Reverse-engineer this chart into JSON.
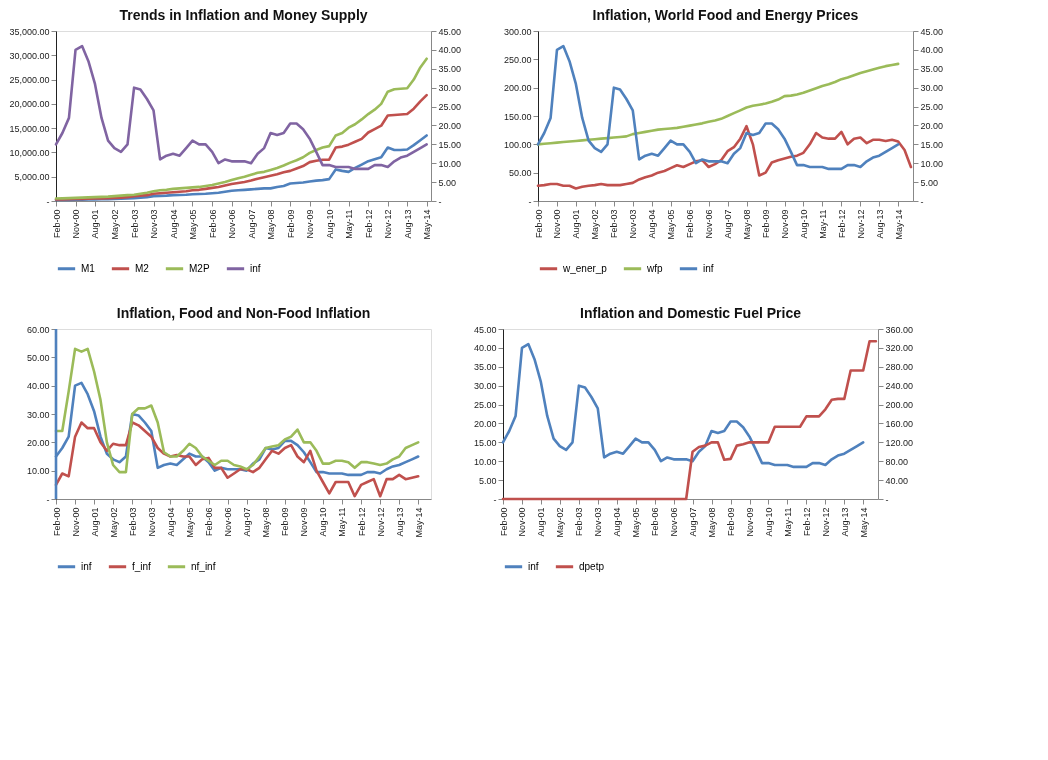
{
  "chart_data": [
    {
      "type": "line",
      "title": "Trends in Inflation and  Money Supply",
      "legend": "bottom",
      "grid": false,
      "x": [
        "2000-02",
        "2000-05",
        "2000-08",
        "2000-11",
        "2001-02",
        "2001-05",
        "2001-08",
        "2001-11",
        "2002-02",
        "2002-05",
        "2002-08",
        "2002-11",
        "2003-02",
        "2003-05",
        "2003-08",
        "2003-11",
        "2004-02",
        "2004-05",
        "2004-08",
        "2004-11",
        "2005-02",
        "2005-05",
        "2005-08",
        "2005-11",
        "2006-02",
        "2006-05",
        "2006-08",
        "2006-11",
        "2007-02",
        "2007-05",
        "2007-08",
        "2007-11",
        "2008-02",
        "2008-05",
        "2008-08",
        "2008-11",
        "2009-02",
        "2009-05",
        "2009-08",
        "2009-11",
        "2010-02",
        "2010-05",
        "2010-08",
        "2010-11",
        "2011-02",
        "2011-05",
        "2011-08",
        "2011-11",
        "2012-02",
        "2012-05",
        "2012-08",
        "2012-11",
        "2013-02",
        "2013-05",
        "2013-08",
        "2013-11",
        "2014-02",
        "2014-05"
      ],
      "xlim": [
        "2000-02",
        "2014-07"
      ],
      "xticks": [
        {
          "value": "2000-02",
          "label": "Feb-00"
        },
        {
          "value": "2000-11",
          "label": "Nov-00"
        },
        {
          "value": "2001-08",
          "label": "Aug-01"
        },
        {
          "value": "2002-05",
          "label": "May-02"
        },
        {
          "value": "2003-02",
          "label": "Feb-03"
        },
        {
          "value": "2003-11",
          "label": "Nov-03"
        },
        {
          "value": "2004-08",
          "label": "Aug-04"
        },
        {
          "value": "2005-05",
          "label": "May-05"
        },
        {
          "value": "2006-02",
          "label": "Feb-06"
        },
        {
          "value": "2006-11",
          "label": "Nov-06"
        },
        {
          "value": "2007-08",
          "label": "Aug-07"
        },
        {
          "value": "2008-05",
          "label": "May-08"
        },
        {
          "value": "2009-02",
          "label": "Feb-09"
        },
        {
          "value": "2009-11",
          "label": "Nov-09"
        },
        {
          "value": "2010-08",
          "label": "Aug-10"
        },
        {
          "value": "2011-05",
          "label": "May-11"
        },
        {
          "value": "2012-02",
          "label": "Feb-12"
        },
        {
          "value": "2012-11",
          "label": "Nov-12"
        },
        {
          "value": "2013-08",
          "label": "Aug-13"
        },
        {
          "value": "2014-05",
          "label": "May-14"
        }
      ],
      "ylim": [
        0,
        35000
      ],
      "yticks": [
        {
          "value": 0,
          "label": "-"
        },
        {
          "value": 5000,
          "label": "5,000.00"
        },
        {
          "value": 10000,
          "label": "10,000.00"
        },
        {
          "value": 15000,
          "label": "15,000.00"
        },
        {
          "value": 20000,
          "label": "20,000.00"
        },
        {
          "value": 25000,
          "label": "25,000.00"
        },
        {
          "value": 30000,
          "label": "30,000.00"
        },
        {
          "value": 35000,
          "label": "35,000.00"
        }
      ],
      "y2lim": [
        0,
        45
      ],
      "y2ticks": [
        {
          "value": 0,
          "label": "-"
        },
        {
          "value": 5,
          "label": "5.00"
        },
        {
          "value": 10,
          "label": "10.00"
        },
        {
          "value": 15,
          "label": "15.00"
        },
        {
          "value": 20,
          "label": "20.00"
        },
        {
          "value": 25,
          "label": "25.00"
        },
        {
          "value": 30,
          "label": "30.00"
        },
        {
          "value": 35,
          "label": "35.00"
        },
        {
          "value": 40,
          "label": "40.00"
        },
        {
          "value": 45,
          "label": "45.00"
        }
      ],
      "series": [
        {
          "name": "M1",
          "color": "#4f81bd",
          "values": [
            200,
            220,
            240,
            260,
            280,
            300,
            320,
            350,
            380,
            420,
            460,
            520,
            600,
            700,
            800,
            1000,
            1050,
            1100,
            1200,
            1250,
            1300,
            1400,
            1450,
            1500,
            1600,
            1700,
            1900,
            2100,
            2200,
            2300,
            2400,
            2500,
            2600,
            2600,
            2900,
            3100,
            3600,
            3700,
            3800,
            4000,
            4200,
            4300,
            4500,
            6500,
            6200,
            6000,
            6800,
            7500,
            8200,
            8600,
            9000,
            11000,
            10500,
            10500,
            10600,
            11500,
            12500,
            13500
          ]
        },
        {
          "name": "M2",
          "color": "#c0504d",
          "values": [
            300,
            330,
            360,
            400,
            430,
            460,
            500,
            550,
            600,
            650,
            700,
            800,
            1000,
            1100,
            1200,
            1500,
            1600,
            1700,
            1800,
            1900,
            2000,
            2200,
            2300,
            2500,
            2700,
            2900,
            3200,
            3500,
            3700,
            3900,
            4200,
            4600,
            4900,
            5200,
            5500,
            5900,
            6200,
            6700,
            7200,
            8000,
            8300,
            8500,
            8500,
            11000,
            11200,
            11600,
            12200,
            12800,
            14100,
            14800,
            15500,
            17600,
            17700,
            17800,
            17900,
            19000,
            20500,
            21800
          ]
        },
        {
          "name": "M2P",
          "color": "#9bbb59",
          "values": [
            500,
            550,
            600,
            650,
            700,
            750,
            800,
            850,
            900,
            1000,
            1100,
            1200,
            1300,
            1500,
            1700,
            2000,
            2200,
            2300,
            2500,
            2600,
            2700,
            2800,
            2900,
            3100,
            3300,
            3600,
            3900,
            4300,
            4700,
            5000,
            5400,
            5800,
            6000,
            6400,
            6800,
            7300,
            7900,
            8400,
            9000,
            9900,
            10500,
            11000,
            11300,
            13500,
            14000,
            15100,
            15800,
            16800,
            17900,
            18800,
            20000,
            22500,
            23000,
            23100,
            23200,
            25000,
            27500,
            29300
          ]
        },
        {
          "name": "inf",
          "color": "#8064a2",
          "axis": "y2",
          "values": [
            15,
            18,
            22,
            40,
            41,
            37,
            31,
            22,
            16,
            14,
            13,
            15,
            30,
            29.5,
            27,
            24,
            11,
            12,
            12.5,
            12,
            14,
            16,
            15,
            15,
            13,
            10,
            11,
            10.5,
            10.5,
            10.5,
            10,
            12.5,
            14,
            18,
            17.5,
            18,
            20.5,
            20.5,
            19,
            16.5,
            13,
            9.5,
            9.5,
            9,
            9,
            9,
            8.5,
            8.5,
            8.5,
            9.5,
            9.5,
            9,
            10.5,
            11.5,
            12,
            13,
            14,
            15
          ]
        }
      ]
    },
    {
      "type": "line",
      "title": "Inflation, World Food and Energy Prices",
      "legend": "bottom",
      "grid": false,
      "x": [
        "2000-02",
        "2000-05",
        "2000-08",
        "2000-11",
        "2001-02",
        "2001-05",
        "2001-08",
        "2001-11",
        "2002-02",
        "2002-05",
        "2002-08",
        "2002-11",
        "2003-02",
        "2003-05",
        "2003-08",
        "2003-11",
        "2004-02",
        "2004-05",
        "2004-08",
        "2004-11",
        "2005-02",
        "2005-05",
        "2005-08",
        "2005-11",
        "2006-02",
        "2006-05",
        "2006-08",
        "2006-11",
        "2007-02",
        "2007-05",
        "2007-08",
        "2007-11",
        "2008-02",
        "2008-05",
        "2008-08",
        "2008-11",
        "2009-02",
        "2009-05",
        "2009-08",
        "2009-11",
        "2010-02",
        "2010-05",
        "2010-08",
        "2010-11",
        "2011-02",
        "2011-05",
        "2011-08",
        "2011-11",
        "2012-02",
        "2012-05",
        "2012-08",
        "2012-11",
        "2013-02",
        "2013-05",
        "2013-08",
        "2013-11",
        "2014-02",
        "2014-05",
        "2014-08",
        "2014-11"
      ],
      "xlim": [
        "2000-02",
        "2014-12"
      ],
      "xticks": [
        {
          "value": "2000-02",
          "label": "Feb-00"
        },
        {
          "value": "2000-11",
          "label": "Nov-00"
        },
        {
          "value": "2001-08",
          "label": "Aug-01"
        },
        {
          "value": "2002-05",
          "label": "May-02"
        },
        {
          "value": "2003-02",
          "label": "Feb-03"
        },
        {
          "value": "2003-11",
          "label": "Nov-03"
        },
        {
          "value": "2004-08",
          "label": "Aug-04"
        },
        {
          "value": "2005-05",
          "label": "May-05"
        },
        {
          "value": "2006-02",
          "label": "Feb-06"
        },
        {
          "value": "2006-11",
          "label": "Nov-06"
        },
        {
          "value": "2007-08",
          "label": "Aug-07"
        },
        {
          "value": "2008-05",
          "label": "May-08"
        },
        {
          "value": "2009-02",
          "label": "Feb-09"
        },
        {
          "value": "2009-11",
          "label": "Nov-09"
        },
        {
          "value": "2010-08",
          "label": "Aug-10"
        },
        {
          "value": "2011-05",
          "label": "May-11"
        },
        {
          "value": "2012-02",
          "label": "Feb-12"
        },
        {
          "value": "2012-11",
          "label": "Nov-12"
        },
        {
          "value": "2013-08",
          "label": "Aug-13"
        },
        {
          "value": "2014-05",
          "label": "May-14"
        }
      ],
      "ylim": [
        0,
        300
      ],
      "yticks": [
        {
          "value": 0,
          "label": "-"
        },
        {
          "value": 50,
          "label": "50.00"
        },
        {
          "value": 100,
          "label": "100.00"
        },
        {
          "value": 150,
          "label": "150.00"
        },
        {
          "value": 200,
          "label": "200.00"
        },
        {
          "value": 250,
          "label": "250.00"
        },
        {
          "value": 300,
          "label": "300.00"
        }
      ],
      "y2lim": [
        0,
        45
      ],
      "y2ticks": [
        {
          "value": 0,
          "label": "-"
        },
        {
          "value": 5,
          "label": "5.00"
        },
        {
          "value": 10,
          "label": "10.00"
        },
        {
          "value": 15,
          "label": "15.00"
        },
        {
          "value": 20,
          "label": "20.00"
        },
        {
          "value": 25,
          "label": "25.00"
        },
        {
          "value": 30,
          "label": "30.00"
        },
        {
          "value": 35,
          "label": "35.00"
        },
        {
          "value": 40,
          "label": "40.00"
        },
        {
          "value": 45,
          "label": "45.00"
        }
      ],
      "series": [
        {
          "name": "w_ener_p",
          "color": "#c0504d",
          "values": [
            27,
            28,
            30,
            30,
            27,
            27,
            22,
            25,
            27,
            28,
            30,
            28,
            28,
            28,
            30,
            32,
            38,
            42,
            45,
            50,
            53,
            58,
            63,
            60,
            65,
            70,
            72,
            60,
            65,
            72,
            88,
            95,
            110,
            132,
            100,
            45,
            50,
            68,
            72,
            75,
            78,
            80,
            85,
            100,
            120,
            112,
            110,
            110,
            122,
            100,
            110,
            112,
            102,
            108,
            108,
            106,
            108,
            105,
            90,
            60
          ]
        },
        {
          "name": "wfp",
          "color": "#9bbb59",
          "values": [
            100,
            101,
            102,
            103,
            104,
            105,
            106,
            107,
            108,
            109,
            110,
            111,
            112,
            113,
            114,
            118,
            120,
            122,
            124,
            126,
            127,
            128,
            129,
            131,
            133,
            135,
            137,
            140,
            142,
            145,
            150,
            155,
            160,
            165,
            168,
            170,
            172,
            175,
            179,
            185,
            186,
            188,
            191,
            195,
            199,
            203,
            206,
            210,
            215,
            218,
            222,
            226,
            229,
            232,
            235,
            238,
            240,
            242,
            null,
            null
          ]
        },
        {
          "name": "inf",
          "color": "#4f81bd",
          "axis": "y2",
          "values": [
            15,
            18,
            22,
            40,
            41,
            37,
            31,
            22,
            16,
            14,
            13,
            15,
            30,
            29.5,
            27,
            24,
            11,
            12,
            12.5,
            12,
            14,
            16,
            15,
            15,
            13,
            10,
            11,
            10.5,
            10.5,
            10.5,
            10,
            12.5,
            14,
            18,
            17.5,
            18,
            20.5,
            20.5,
            19,
            16.5,
            13,
            9.5,
            9.5,
            9,
            9,
            9,
            8.5,
            8.5,
            8.5,
            9.5,
            9.5,
            9,
            10.5,
            11.5,
            12,
            13,
            14,
            15,
            null,
            null
          ]
        }
      ]
    },
    {
      "type": "line",
      "title": "Inflation, Food and Non-Food Inflation",
      "legend": "bottom",
      "grid": false,
      "x": [
        "2000-02",
        "2000-05",
        "2000-08",
        "2000-11",
        "2001-02",
        "2001-05",
        "2001-08",
        "2001-11",
        "2002-02",
        "2002-05",
        "2002-08",
        "2002-11",
        "2003-02",
        "2003-05",
        "2003-08",
        "2003-11",
        "2004-02",
        "2004-05",
        "2004-08",
        "2004-11",
        "2005-02",
        "2005-05",
        "2005-08",
        "2005-11",
        "2006-02",
        "2006-05",
        "2006-08",
        "2006-11",
        "2007-02",
        "2007-05",
        "2007-08",
        "2007-11",
        "2008-02",
        "2008-05",
        "2008-08",
        "2008-11",
        "2009-02",
        "2009-05",
        "2009-08",
        "2009-11",
        "2010-02",
        "2010-05",
        "2010-08",
        "2010-11",
        "2011-02",
        "2011-05",
        "2011-08",
        "2011-11",
        "2012-02",
        "2012-05",
        "2012-08",
        "2012-11",
        "2013-02",
        "2013-05",
        "2013-08",
        "2013-11",
        "2014-02",
        "2014-05"
      ],
      "xlim": [
        "2000-02",
        "2014-11"
      ],
      "xticks": [
        {
          "value": "2000-02",
          "label": "Feb-00"
        },
        {
          "value": "2000-11",
          "label": "Nov-00"
        },
        {
          "value": "2001-08",
          "label": "Aug-01"
        },
        {
          "value": "2002-05",
          "label": "May-02"
        },
        {
          "value": "2003-02",
          "label": "Feb-03"
        },
        {
          "value": "2003-11",
          "label": "Nov-03"
        },
        {
          "value": "2004-08",
          "label": "Aug-04"
        },
        {
          "value": "2005-05",
          "label": "May-05"
        },
        {
          "value": "2006-02",
          "label": "Feb-06"
        },
        {
          "value": "2006-11",
          "label": "Nov-06"
        },
        {
          "value": "2007-08",
          "label": "Aug-07"
        },
        {
          "value": "2008-05",
          "label": "May-08"
        },
        {
          "value": "2009-02",
          "label": "Feb-09"
        },
        {
          "value": "2009-11",
          "label": "Nov-09"
        },
        {
          "value": "2010-08",
          "label": "Aug-10"
        },
        {
          "value": "2011-05",
          "label": "May-11"
        },
        {
          "value": "2012-02",
          "label": "Feb-12"
        },
        {
          "value": "2012-11",
          "label": "Nov-12"
        },
        {
          "value": "2013-08",
          "label": "Aug-13"
        },
        {
          "value": "2014-05",
          "label": "May-14"
        }
      ],
      "ylim": [
        0,
        60
      ],
      "yticks": [
        {
          "value": 0,
          "label": "-"
        },
        {
          "value": 10,
          "label": "10.00"
        },
        {
          "value": 20,
          "label": "20.00"
        },
        {
          "value": 30,
          "label": "30.00"
        },
        {
          "value": 40,
          "label": "40.00"
        },
        {
          "value": 50,
          "label": "50.00"
        },
        {
          "value": 60,
          "label": "60.00"
        }
      ],
      "ref_lines": [
        {
          "axis": "x",
          "value": "2000-02",
          "color": "#4f81bd"
        }
      ],
      "series": [
        {
          "name": "inf",
          "color": "#4f81bd",
          "values": [
            15,
            18,
            22,
            40,
            41,
            37,
            31,
            22,
            16,
            14,
            13,
            15,
            30,
            29.5,
            27,
            24,
            11,
            12,
            12.5,
            12,
            14,
            16,
            15,
            15,
            13,
            10,
            11,
            10.5,
            10.5,
            10.5,
            10,
            12.5,
            14,
            18,
            17.5,
            18,
            20.5,
            20.5,
            19,
            16.5,
            13,
            9.5,
            9.5,
            9,
            9,
            9,
            8.5,
            8.5,
            8.5,
            9.5,
            9.5,
            9,
            10.5,
            11.5,
            12,
            13,
            14,
            15
          ]
        },
        {
          "name": "f_inf",
          "color": "#c0504d",
          "values": [
            5,
            9,
            8,
            22,
            27,
            25,
            25,
            20,
            17,
            19.5,
            19,
            19,
            27,
            26,
            24,
            22,
            18,
            16,
            15,
            15.5,
            15,
            15,
            12,
            14,
            14.5,
            11,
            11,
            7.5,
            9,
            10.5,
            10.5,
            9.5,
            11,
            14,
            17,
            16,
            18,
            19,
            15,
            13,
            17,
            10,
            6,
            2,
            6,
            6,
            6,
            1,
            5,
            6,
            7,
            1,
            7,
            7,
            8.5,
            7,
            7.5,
            8
          ]
        },
        {
          "name": "nf_inf",
          "color": "#9bbb59",
          "values": [
            24,
            24,
            38,
            53,
            52,
            53,
            45,
            35,
            20,
            12,
            9.5,
            9.5,
            30,
            32,
            32,
            33,
            27,
            16.5,
            15,
            15,
            17,
            19.5,
            18,
            15,
            13.5,
            12,
            13.5,
            13.5,
            12,
            11.5,
            10.5,
            12,
            15,
            18,
            18.5,
            19,
            21,
            22,
            24.5,
            20,
            20,
            17,
            12.5,
            12.5,
            13.5,
            13.5,
            13,
            11,
            13,
            13,
            12.5,
            12,
            12.5,
            14,
            15,
            18,
            19,
            20
          ]
        }
      ]
    },
    {
      "type": "line",
      "title": "Inflation and Domestic Fuel Price",
      "legend": "bottom",
      "grid": false,
      "x": [
        "2000-02",
        "2000-05",
        "2000-08",
        "2000-11",
        "2001-02",
        "2001-05",
        "2001-08",
        "2001-11",
        "2002-02",
        "2002-05",
        "2002-08",
        "2002-11",
        "2003-02",
        "2003-05",
        "2003-08",
        "2003-11",
        "2004-02",
        "2004-05",
        "2004-08",
        "2004-11",
        "2005-02",
        "2005-05",
        "2005-08",
        "2005-11",
        "2006-02",
        "2006-05",
        "2006-08",
        "2006-11",
        "2007-02",
        "2007-05",
        "2007-08",
        "2007-11",
        "2008-02",
        "2008-05",
        "2008-08",
        "2008-11",
        "2009-02",
        "2009-05",
        "2009-08",
        "2009-11",
        "2010-02",
        "2010-05",
        "2010-08",
        "2010-11",
        "2011-02",
        "2011-05",
        "2011-08",
        "2011-11",
        "2012-02",
        "2012-05",
        "2012-08",
        "2012-11",
        "2013-02",
        "2013-05",
        "2013-08",
        "2013-11",
        "2014-02",
        "2014-05",
        "2014-08",
        "2014-11"
      ],
      "xlim": [
        "2000-02",
        "2014-12"
      ],
      "xticks": [
        {
          "value": "2000-02",
          "label": "Feb-00"
        },
        {
          "value": "2000-11",
          "label": "Nov-00"
        },
        {
          "value": "2001-08",
          "label": "Aug-01"
        },
        {
          "value": "2002-05",
          "label": "May-02"
        },
        {
          "value": "2003-02",
          "label": "Feb-03"
        },
        {
          "value": "2003-11",
          "label": "Nov-03"
        },
        {
          "value": "2004-08",
          "label": "Aug-04"
        },
        {
          "value": "2005-05",
          "label": "May-05"
        },
        {
          "value": "2006-02",
          "label": "Feb-06"
        },
        {
          "value": "2006-11",
          "label": "Nov-06"
        },
        {
          "value": "2007-08",
          "label": "Aug-07"
        },
        {
          "value": "2008-05",
          "label": "May-08"
        },
        {
          "value": "2009-02",
          "label": "Feb-09"
        },
        {
          "value": "2009-11",
          "label": "Nov-09"
        },
        {
          "value": "2010-08",
          "label": "Aug-10"
        },
        {
          "value": "2011-05",
          "label": "May-11"
        },
        {
          "value": "2012-02",
          "label": "Feb-12"
        },
        {
          "value": "2012-11",
          "label": "Nov-12"
        },
        {
          "value": "2013-08",
          "label": "Aug-13"
        },
        {
          "value": "2014-05",
          "label": "May-14"
        }
      ],
      "ylim": [
        0,
        45
      ],
      "yticks": [
        {
          "value": 0,
          "label": "-"
        },
        {
          "value": 5,
          "label": "5.00"
        },
        {
          "value": 10,
          "label": "10.00"
        },
        {
          "value": 15,
          "label": "15.00"
        },
        {
          "value": 20,
          "label": "20.00"
        },
        {
          "value": 25,
          "label": "25.00"
        },
        {
          "value": 30,
          "label": "30.00"
        },
        {
          "value": 35,
          "label": "35.00"
        },
        {
          "value": 40,
          "label": "40.00"
        },
        {
          "value": 45,
          "label": "45.00"
        }
      ],
      "y2lim": [
        0,
        360
      ],
      "y2ticks": [
        {
          "value": 0,
          "label": "-"
        },
        {
          "value": 40,
          "label": "40.00"
        },
        {
          "value": 80,
          "label": "80.00"
        },
        {
          "value": 120,
          "label": "120.00"
        },
        {
          "value": 160,
          "label": "160.00"
        },
        {
          "value": 200,
          "label": "200.00"
        },
        {
          "value": 240,
          "label": "240.00"
        },
        {
          "value": 280,
          "label": "280.00"
        },
        {
          "value": 320,
          "label": "320.00"
        },
        {
          "value": 360,
          "label": "360.00"
        }
      ],
      "series": [
        {
          "name": "inf",
          "color": "#4f81bd",
          "values": [
            15,
            18,
            22,
            40,
            41,
            37,
            31,
            22,
            16,
            14,
            13,
            15,
            30,
            29.5,
            27,
            24,
            11,
            12,
            12.5,
            12,
            14,
            16,
            15,
            15,
            13,
            10,
            11,
            10.5,
            10.5,
            10.5,
            10,
            12.5,
            14,
            18,
            17.5,
            18,
            20.5,
            20.5,
            19,
            16.5,
            13,
            9.5,
            9.5,
            9,
            9,
            9,
            8.5,
            8.5,
            8.5,
            9.5,
            9.5,
            9,
            10.5,
            11.5,
            12,
            13,
            14,
            15,
            null,
            null
          ]
        },
        {
          "name": "dpetp",
          "color": "#c0504d",
          "axis": "y2",
          "values": [
            0,
            0,
            0,
            0,
            0,
            0,
            0,
            0,
            0,
            0,
            0,
            0,
            0,
            0,
            0,
            0,
            0,
            0,
            0,
            0,
            0,
            0,
            0,
            0,
            0,
            0,
            0,
            0,
            0,
            0,
            100,
            110,
            113,
            120,
            120,
            83,
            85,
            113,
            116,
            120,
            120,
            120,
            120,
            153,
            153,
            153,
            153,
            153,
            175,
            175,
            175,
            190,
            210,
            212,
            212,
            272,
            272,
            272,
            334,
            334
          ]
        }
      ]
    }
  ]
}
